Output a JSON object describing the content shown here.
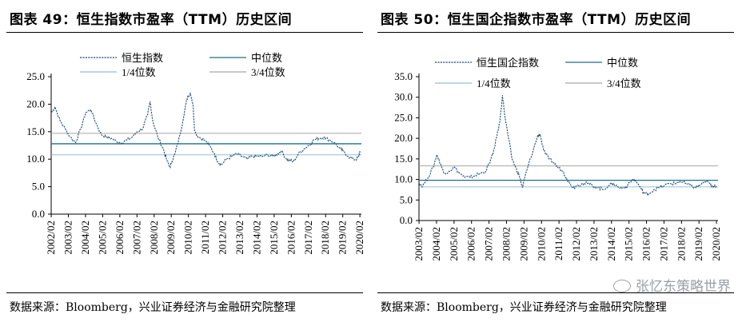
{
  "watermark": {
    "text": "张忆东策略世界",
    "icon": "wechat-icon"
  },
  "chart_data": [
    {
      "type": "line",
      "title": "图表 49：恒生指数市盈率（TTM）历史区间",
      "source": "数据来源：Bloomberg，兴业证券经济与金融研究院整理",
      "xlabel": "",
      "ylabel": "",
      "ylim": [
        0,
        25
      ],
      "yticks": [
        "0.0",
        "5.0",
        "10.0",
        "15.0",
        "20.0",
        "25.0"
      ],
      "x_range": [
        2002.08,
        2020.17
      ],
      "xticks": [
        "2002/02",
        "2003/02",
        "2004/02",
        "2005/02",
        "2006/02",
        "2007/02",
        "2008/02",
        "2009/02",
        "2010/02",
        "2011/02",
        "2012/02",
        "2013/02",
        "2014/02",
        "2015/02",
        "2016/02",
        "2017/02",
        "2018/02",
        "2019/02",
        "2020/02"
      ],
      "legend": [
        "恒生指数",
        "中位数",
        "1/4位数",
        "3/4位数"
      ],
      "series": [
        {
          "name": "恒生指数",
          "style": "dashed",
          "color": "#1f4e79",
          "x": [
            2002.1,
            2002.3,
            2002.6,
            2002.9,
            2003.2,
            2003.5,
            2003.8,
            2004.1,
            2004.4,
            2004.7,
            2005.0,
            2005.3,
            2005.6,
            2005.9,
            2006.2,
            2006.5,
            2006.8,
            2007.1,
            2007.4,
            2007.7,
            2007.85,
            2008.0,
            2008.3,
            2008.6,
            2008.8,
            2009.0,
            2009.1,
            2009.3,
            2009.6,
            2009.9,
            2010.05,
            2010.2,
            2010.35,
            2010.45,
            2010.7,
            2011.0,
            2011.3,
            2011.6,
            2011.8,
            2012.0,
            2012.3,
            2012.6,
            2012.9,
            2013.2,
            2013.5,
            2013.8,
            2014.1,
            2014.4,
            2014.7,
            2015.0,
            2015.3,
            2015.5,
            2015.8,
            2016.0,
            2016.2,
            2016.5,
            2016.8,
            2017.1,
            2017.4,
            2017.7,
            2018.0,
            2018.3,
            2018.6,
            2018.9,
            2019.1,
            2019.4,
            2019.7,
            2019.9,
            2020.0,
            2020.1
          ],
          "values": [
            18.5,
            19.5,
            17.0,
            15.5,
            14.0,
            13.0,
            15.5,
            18.5,
            19.0,
            16.5,
            14.5,
            14.0,
            13.8,
            13.2,
            13.0,
            13.5,
            14.0,
            15.0,
            15.5,
            18.0,
            20.5,
            17.0,
            14.0,
            12.0,
            10.0,
            8.5,
            9.5,
            11.0,
            14.5,
            19.5,
            21.5,
            22.0,
            20.0,
            15.0,
            14.0,
            13.5,
            12.5,
            11.0,
            9.5,
            9.0,
            10.0,
            10.5,
            11.0,
            10.5,
            10.0,
            10.5,
            10.5,
            10.5,
            10.8,
            10.5,
            11.0,
            11.5,
            10.0,
            9.8,
            9.5,
            11.0,
            11.8,
            12.5,
            13.5,
            13.8,
            14.0,
            13.5,
            13.0,
            12.0,
            11.5,
            10.5,
            10.0,
            10.0,
            10.5,
            11.5
          ]
        },
        {
          "name": "中位数",
          "style": "solid",
          "color": "#1f6f8b",
          "values": [
            12.8
          ]
        },
        {
          "name": "1/4位数",
          "style": "solid",
          "color": "#8fc1d6",
          "values": [
            10.8
          ]
        },
        {
          "name": "3/4位数",
          "style": "solid",
          "color": "#a6a6a6",
          "values": [
            14.7
          ]
        }
      ]
    },
    {
      "type": "line",
      "title": "图表 50：恒生国企指数市盈率（TTM）历史区间",
      "source": "数据来源：Bloomberg，兴业证券经济与金融研究院整理",
      "xlabel": "",
      "ylabel": "",
      "ylim": [
        0,
        35
      ],
      "yticks": [
        "0.0",
        "5.0",
        "10.0",
        "15.0",
        "20.0",
        "25.0",
        "30.0",
        "35.0"
      ],
      "x_range": [
        2003.08,
        2020.17
      ],
      "xticks": [
        "2003/02",
        "2004/02",
        "2005/02",
        "2006/02",
        "2007/02",
        "2008/02",
        "2009/02",
        "2010/02",
        "2011/02",
        "2012/02",
        "2013/02",
        "2014/02",
        "2015/02",
        "2016/02",
        "2017/02",
        "2018/02",
        "2019/02",
        "2020/02"
      ],
      "legend": [
        "恒生国企指数",
        "中位数",
        "1/4位数",
        "3/4位数"
      ],
      "series": [
        {
          "name": "恒生国企指数",
          "style": "dashed",
          "color": "#1f4e79",
          "x": [
            2003.1,
            2003.3,
            2003.6,
            2003.9,
            2004.1,
            2004.3,
            2004.5,
            2004.8,
            2005.1,
            2005.4,
            2005.7,
            2006.0,
            2006.3,
            2006.6,
            2006.9,
            2007.1,
            2007.3,
            2007.5,
            2007.7,
            2007.85,
            2008.0,
            2008.2,
            2008.4,
            2008.6,
            2008.8,
            2009.0,
            2009.1,
            2009.3,
            2009.6,
            2009.85,
            2010.0,
            2010.2,
            2010.5,
            2010.8,
            2011.0,
            2011.3,
            2011.5,
            2011.7,
            2011.9,
            2012.1,
            2012.4,
            2012.7,
            2013.0,
            2013.3,
            2013.6,
            2013.9,
            2014.2,
            2014.5,
            2014.8,
            2015.0,
            2015.3,
            2015.5,
            2015.8,
            2016.0,
            2016.2,
            2016.5,
            2016.8,
            2017.1,
            2017.4,
            2017.7,
            2018.0,
            2018.3,
            2018.6,
            2018.9,
            2019.1,
            2019.4,
            2019.7,
            2019.9,
            2020.0,
            2020.1
          ],
          "values": [
            9.0,
            8.5,
            10.5,
            13.0,
            16.0,
            14.0,
            11.5,
            12.0,
            13.0,
            11.5,
            10.5,
            10.5,
            11.0,
            11.5,
            12.0,
            14.0,
            16.0,
            20.0,
            24.0,
            30.5,
            25.0,
            20.0,
            15.0,
            13.0,
            11.0,
            8.0,
            10.0,
            13.0,
            17.0,
            20.5,
            21.0,
            17.0,
            15.0,
            14.0,
            13.0,
            12.0,
            10.5,
            9.0,
            8.0,
            8.5,
            9.0,
            9.0,
            8.5,
            8.0,
            7.5,
            8.5,
            9.0,
            8.0,
            8.0,
            8.5,
            10.0,
            9.5,
            7.5,
            6.5,
            6.5,
            7.5,
            8.0,
            8.5,
            9.0,
            9.0,
            9.5,
            9.0,
            8.5,
            8.0,
            8.5,
            9.5,
            9.0,
            8.0,
            8.5,
            8.5
          ]
        },
        {
          "name": "中位数",
          "style": "solid",
          "color": "#1f6f8b",
          "values": [
            9.8
          ]
        },
        {
          "name": "1/4位数",
          "style": "solid",
          "color": "#8fc1d6",
          "values": [
            8.2
          ]
        },
        {
          "name": "3/4位数",
          "style": "solid",
          "color": "#a6a6a6",
          "values": [
            13.3
          ]
        }
      ]
    }
  ]
}
